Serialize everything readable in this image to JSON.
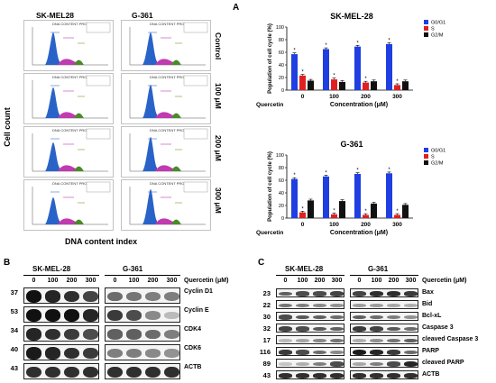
{
  "panels": {
    "a": "A",
    "b": "B",
    "c": "C"
  },
  "flow": {
    "cell_lines": [
      "SK-MEL28",
      "G-361"
    ],
    "conditions": [
      "Control",
      "100 μM",
      "200 μM",
      "300 μM"
    ],
    "plot_title": "DNA CONTENT PROFILE",
    "xlabel": "DNA content index",
    "ylabel": "Cell count"
  },
  "chart_data": [
    {
      "type": "bar",
      "title": "SK-MEL-28",
      "categories": [
        "0",
        "100",
        "200",
        "300"
      ],
      "category_prefix": "Quercetin",
      "xlabel": "Concentration (μM)",
      "ylabel": "Population of cell cycle (%)",
      "ylim": [
        0,
        100
      ],
      "yticks": [
        0,
        20,
        40,
        60,
        80,
        100
      ],
      "series": [
        {
          "name": "G0/G1",
          "color": "#1f3fe0",
          "values": [
            57,
            65,
            69,
            73
          ],
          "errors": [
            2,
            2,
            2,
            2
          ]
        },
        {
          "name": "S",
          "color": "#e02020",
          "values": [
            23,
            17,
            12,
            8
          ],
          "errors": [
            2,
            2,
            2,
            2
          ]
        },
        {
          "name": "G2/M",
          "color": "#111111",
          "values": [
            15,
            13,
            14,
            14
          ],
          "errors": [
            2,
            2,
            2,
            2
          ]
        }
      ],
      "annotations": [
        "*",
        "*",
        "*",
        "*",
        "*",
        "*",
        "*",
        "*",
        "*"
      ]
    },
    {
      "type": "bar",
      "title": "G-361",
      "categories": [
        "0",
        "100",
        "200",
        "300"
      ],
      "category_prefix": "Quercetin",
      "xlabel": "Concentration (μM)",
      "ylabel": "Population of cell cycle (%)",
      "ylim": [
        0,
        100
      ],
      "yticks": [
        0,
        20,
        40,
        60,
        80,
        100
      ],
      "series": [
        {
          "name": "G0/G1",
          "color": "#1f3fe0",
          "values": [
            62,
            66,
            70,
            71
          ],
          "errors": [
            2,
            2,
            2,
            2
          ]
        },
        {
          "name": "S",
          "color": "#e02020",
          "values": [
            9,
            6,
            5,
            5
          ],
          "errors": [
            2,
            2,
            2,
            2
          ]
        },
        {
          "name": "G2/M",
          "color": "#111111",
          "values": [
            28,
            27,
            23,
            21
          ],
          "errors": [
            2,
            2,
            2,
            2
          ]
        }
      ],
      "annotations": [
        "*",
        "*",
        "*",
        "*",
        "*",
        "*",
        "*",
        "*"
      ]
    }
  ],
  "western_b": {
    "cell_lines": [
      "SK-MEL-28",
      "G-361"
    ],
    "header": "Quercetin (μM)",
    "doses": [
      "0",
      "100",
      "200",
      "300"
    ],
    "rows": [
      {
        "mw": "37",
        "label": "Cyclin D1",
        "bands": [
          1.0,
          0.9,
          0.85,
          0.75,
          0.55,
          0.5,
          0.45,
          0.45
        ]
      },
      {
        "mw": "53",
        "label": "Cyclin E",
        "bands": [
          1.0,
          1.0,
          1.0,
          0.9,
          0.8,
          0.7,
          0.4,
          0.15
        ]
      },
      {
        "mw": "34",
        "label": "CDK4",
        "bands": [
          0.9,
          0.85,
          0.8,
          0.7,
          0.6,
          0.6,
          0.55,
          0.45
        ]
      },
      {
        "mw": "40",
        "label": "CDK6",
        "bands": [
          0.95,
          0.9,
          0.85,
          0.8,
          0.45,
          0.45,
          0.4,
          0.35
        ]
      },
      {
        "mw": "43",
        "label": "ACTB",
        "bands": [
          0.85,
          0.85,
          0.85,
          0.85,
          0.85,
          0.85,
          0.85,
          0.85
        ]
      }
    ]
  },
  "western_c": {
    "cell_lines": [
      "SK-MEL-28",
      "G-361"
    ],
    "header": "Quercetin (μM)",
    "doses": [
      "0",
      "100",
      "200",
      "300"
    ],
    "rows": [
      {
        "mw": "23",
        "label": "Bax",
        "bands": [
          0.6,
          0.7,
          0.7,
          0.75,
          0.75,
          0.85,
          0.85,
          0.8
        ]
      },
      {
        "mw": "22",
        "label": "Bid",
        "bands": [
          0.5,
          0.45,
          0.4,
          0.35,
          0.3,
          0.3,
          0.25,
          0.2
        ]
      },
      {
        "mw": "30",
        "label": "Bcl-xL",
        "bands": [
          0.7,
          0.65,
          0.6,
          0.55,
          0.6,
          0.55,
          0.45,
          0.35
        ]
      },
      {
        "mw": "32",
        "label": "Caspase 3",
        "bands": [
          0.75,
          0.7,
          0.65,
          0.6,
          0.8,
          0.75,
          0.65,
          0.55
        ]
      },
      {
        "mw": "17",
        "label": "cleaved Caspase 3",
        "bands": [
          0.15,
          0.25,
          0.4,
          0.5,
          0.2,
          0.35,
          0.5,
          0.6
        ]
      },
      {
        "mw": "116",
        "label": "PARP",
        "bands": [
          0.8,
          0.7,
          0.55,
          0.4,
          0.95,
          0.9,
          0.8,
          0.55
        ]
      },
      {
        "mw": "89",
        "label": "cleaved PARP",
        "bands": [
          0.1,
          0.2,
          0.45,
          0.7,
          0.25,
          0.45,
          0.7,
          0.9
        ]
      },
      {
        "mw": "43",
        "label": "ACTB",
        "bands": [
          0.85,
          0.85,
          0.85,
          0.85,
          0.85,
          0.85,
          0.85,
          0.85
        ]
      }
    ]
  }
}
